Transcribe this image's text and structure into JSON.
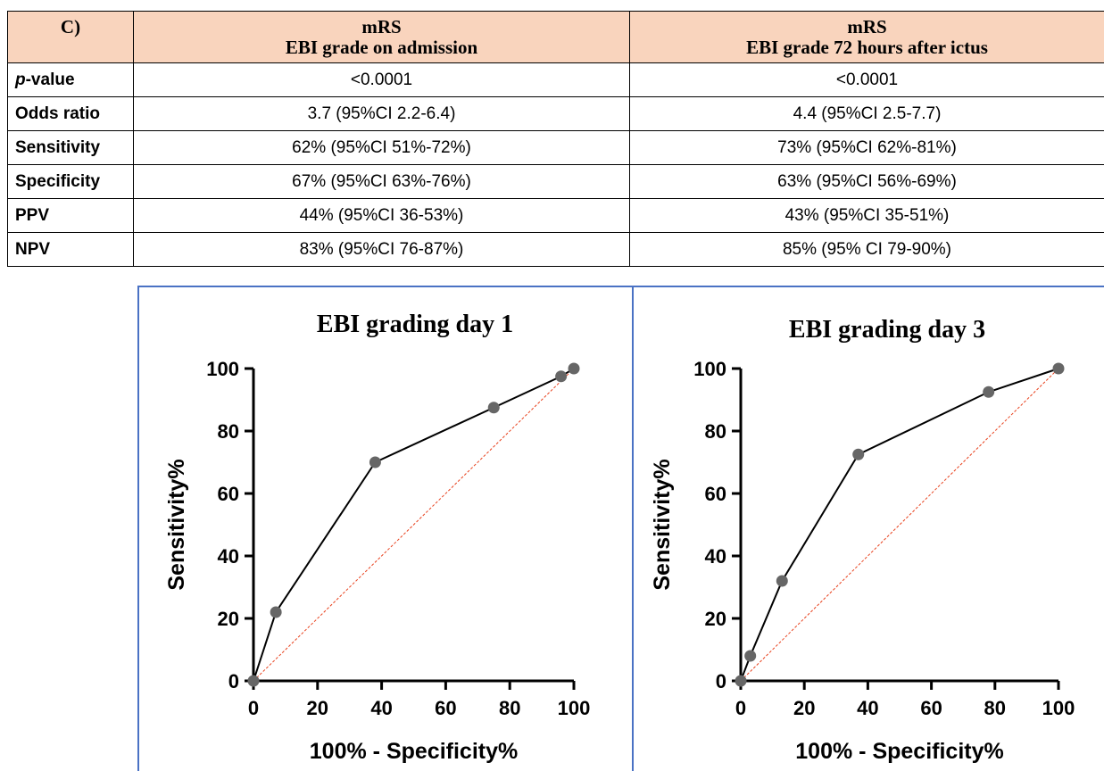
{
  "table": {
    "corner": "C)",
    "col1_header": [
      "mRS",
      "EBI grade on admission"
    ],
    "col2_header": [
      "mRS",
      "EBI grade 72 hours after ictus"
    ],
    "rows": [
      {
        "label_italic": "p",
        "label_rest": "-value",
        "admission": "<0.0001",
        "h72": "<0.0001"
      },
      {
        "label_italic": "",
        "label_rest": "Odds ratio",
        "admission": "3.7 (95%CI 2.2-6.4)",
        "h72": "4.4 (95%CI 2.5-7.7)"
      },
      {
        "label_italic": "",
        "label_rest": "Sensitivity",
        "admission": "62% (95%CI 51%-72%)",
        "h72": "73% (95%CI 62%-81%)"
      },
      {
        "label_italic": "",
        "label_rest": "Specificity",
        "admission": "67% (95%CI 63%-76%)",
        "h72": "63% (95%CI 56%-69%)"
      },
      {
        "label_italic": "",
        "label_rest": "PPV",
        "admission": "44% (95%CI 36-53%)",
        "h72": "43% (95%CI 35-51%)"
      },
      {
        "label_italic": "",
        "label_rest": "NPV",
        "admission": "83% (95%CI 76-87%)",
        "h72": "85% (95% CI 79-90%)"
      }
    ]
  },
  "colors": {
    "header_bg": "#f9d4bd",
    "panel_border": "#4a72c4",
    "roc_line": "#000000",
    "roc_point": "#666666",
    "reference_line": "#e8401c"
  },
  "chart_data": [
    {
      "type": "line",
      "title": "EBI grading day 1",
      "xlabel": "100% - Specificity%",
      "ylabel": "Sensitivity%",
      "xlim": [
        0,
        100
      ],
      "ylim": [
        0,
        100
      ],
      "xticks": [
        0,
        20,
        40,
        60,
        80,
        100
      ],
      "yticks": [
        0,
        20,
        40,
        60,
        80,
        100
      ],
      "grid": false,
      "series": [
        {
          "x": [
            0,
            7,
            38,
            75,
            96,
            100
          ],
          "y": [
            0,
            22,
            70,
            87.5,
            97.5,
            100
          ],
          "markers": true
        }
      ],
      "reference_line": {
        "x": [
          0,
          100
        ],
        "y": [
          0,
          100
        ],
        "style": "dashed"
      }
    },
    {
      "type": "line",
      "title": "EBI grading day 3",
      "xlabel": "100% - Specificity%",
      "ylabel": "Sensitivity%",
      "xlim": [
        0,
        100
      ],
      "ylim": [
        0,
        100
      ],
      "xticks": [
        0,
        20,
        40,
        60,
        80,
        100
      ],
      "yticks": [
        0,
        20,
        40,
        60,
        80,
        100
      ],
      "grid": false,
      "series": [
        {
          "x": [
            0,
            3,
            13,
            37,
            78,
            100
          ],
          "y": [
            0,
            8,
            32,
            72.5,
            92.5,
            100
          ],
          "markers": true
        }
      ],
      "reference_line": {
        "x": [
          0,
          100
        ],
        "y": [
          0,
          100
        ],
        "style": "dashed"
      }
    }
  ]
}
